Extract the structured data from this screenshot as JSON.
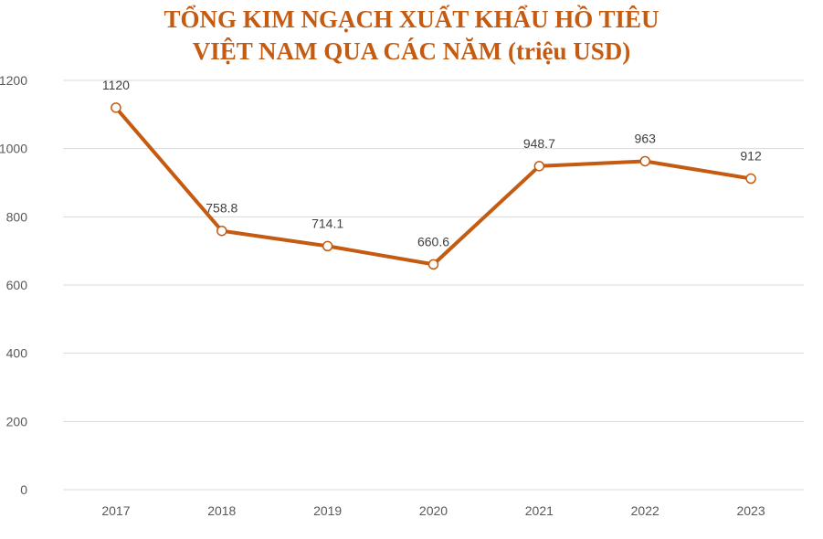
{
  "chart_data": {
    "type": "line",
    "title_lines": [
      "TỔNG KIM NGẠCH XUẤT KHẨU HỒ TIÊU",
      "VIỆT NAM QUA CÁC NĂM (triệu USD)"
    ],
    "categories": [
      "2017",
      "2018",
      "2019",
      "2020",
      "2021",
      "2022",
      "2023"
    ],
    "series": [
      {
        "values": [
          1120,
          758.8,
          714.1,
          660.6,
          948.7,
          963,
          912
        ],
        "labels": [
          "1120",
          "758.8",
          "714.1",
          "660.6",
          "948.7",
          "963",
          "912"
        ],
        "color": "#c55a11",
        "marker_fill": "#ffffff"
      }
    ],
    "yticks": [
      "0",
      "200",
      "400",
      "600",
      "800",
      "1000",
      "1200"
    ],
    "ylim": [
      0,
      1200
    ],
    "grid": true,
    "legend": "none",
    "colors": {
      "title": "#c55a11",
      "grid": "#d9d9d9",
      "tick_text": "#595959",
      "data_label_text": "#404040"
    }
  }
}
